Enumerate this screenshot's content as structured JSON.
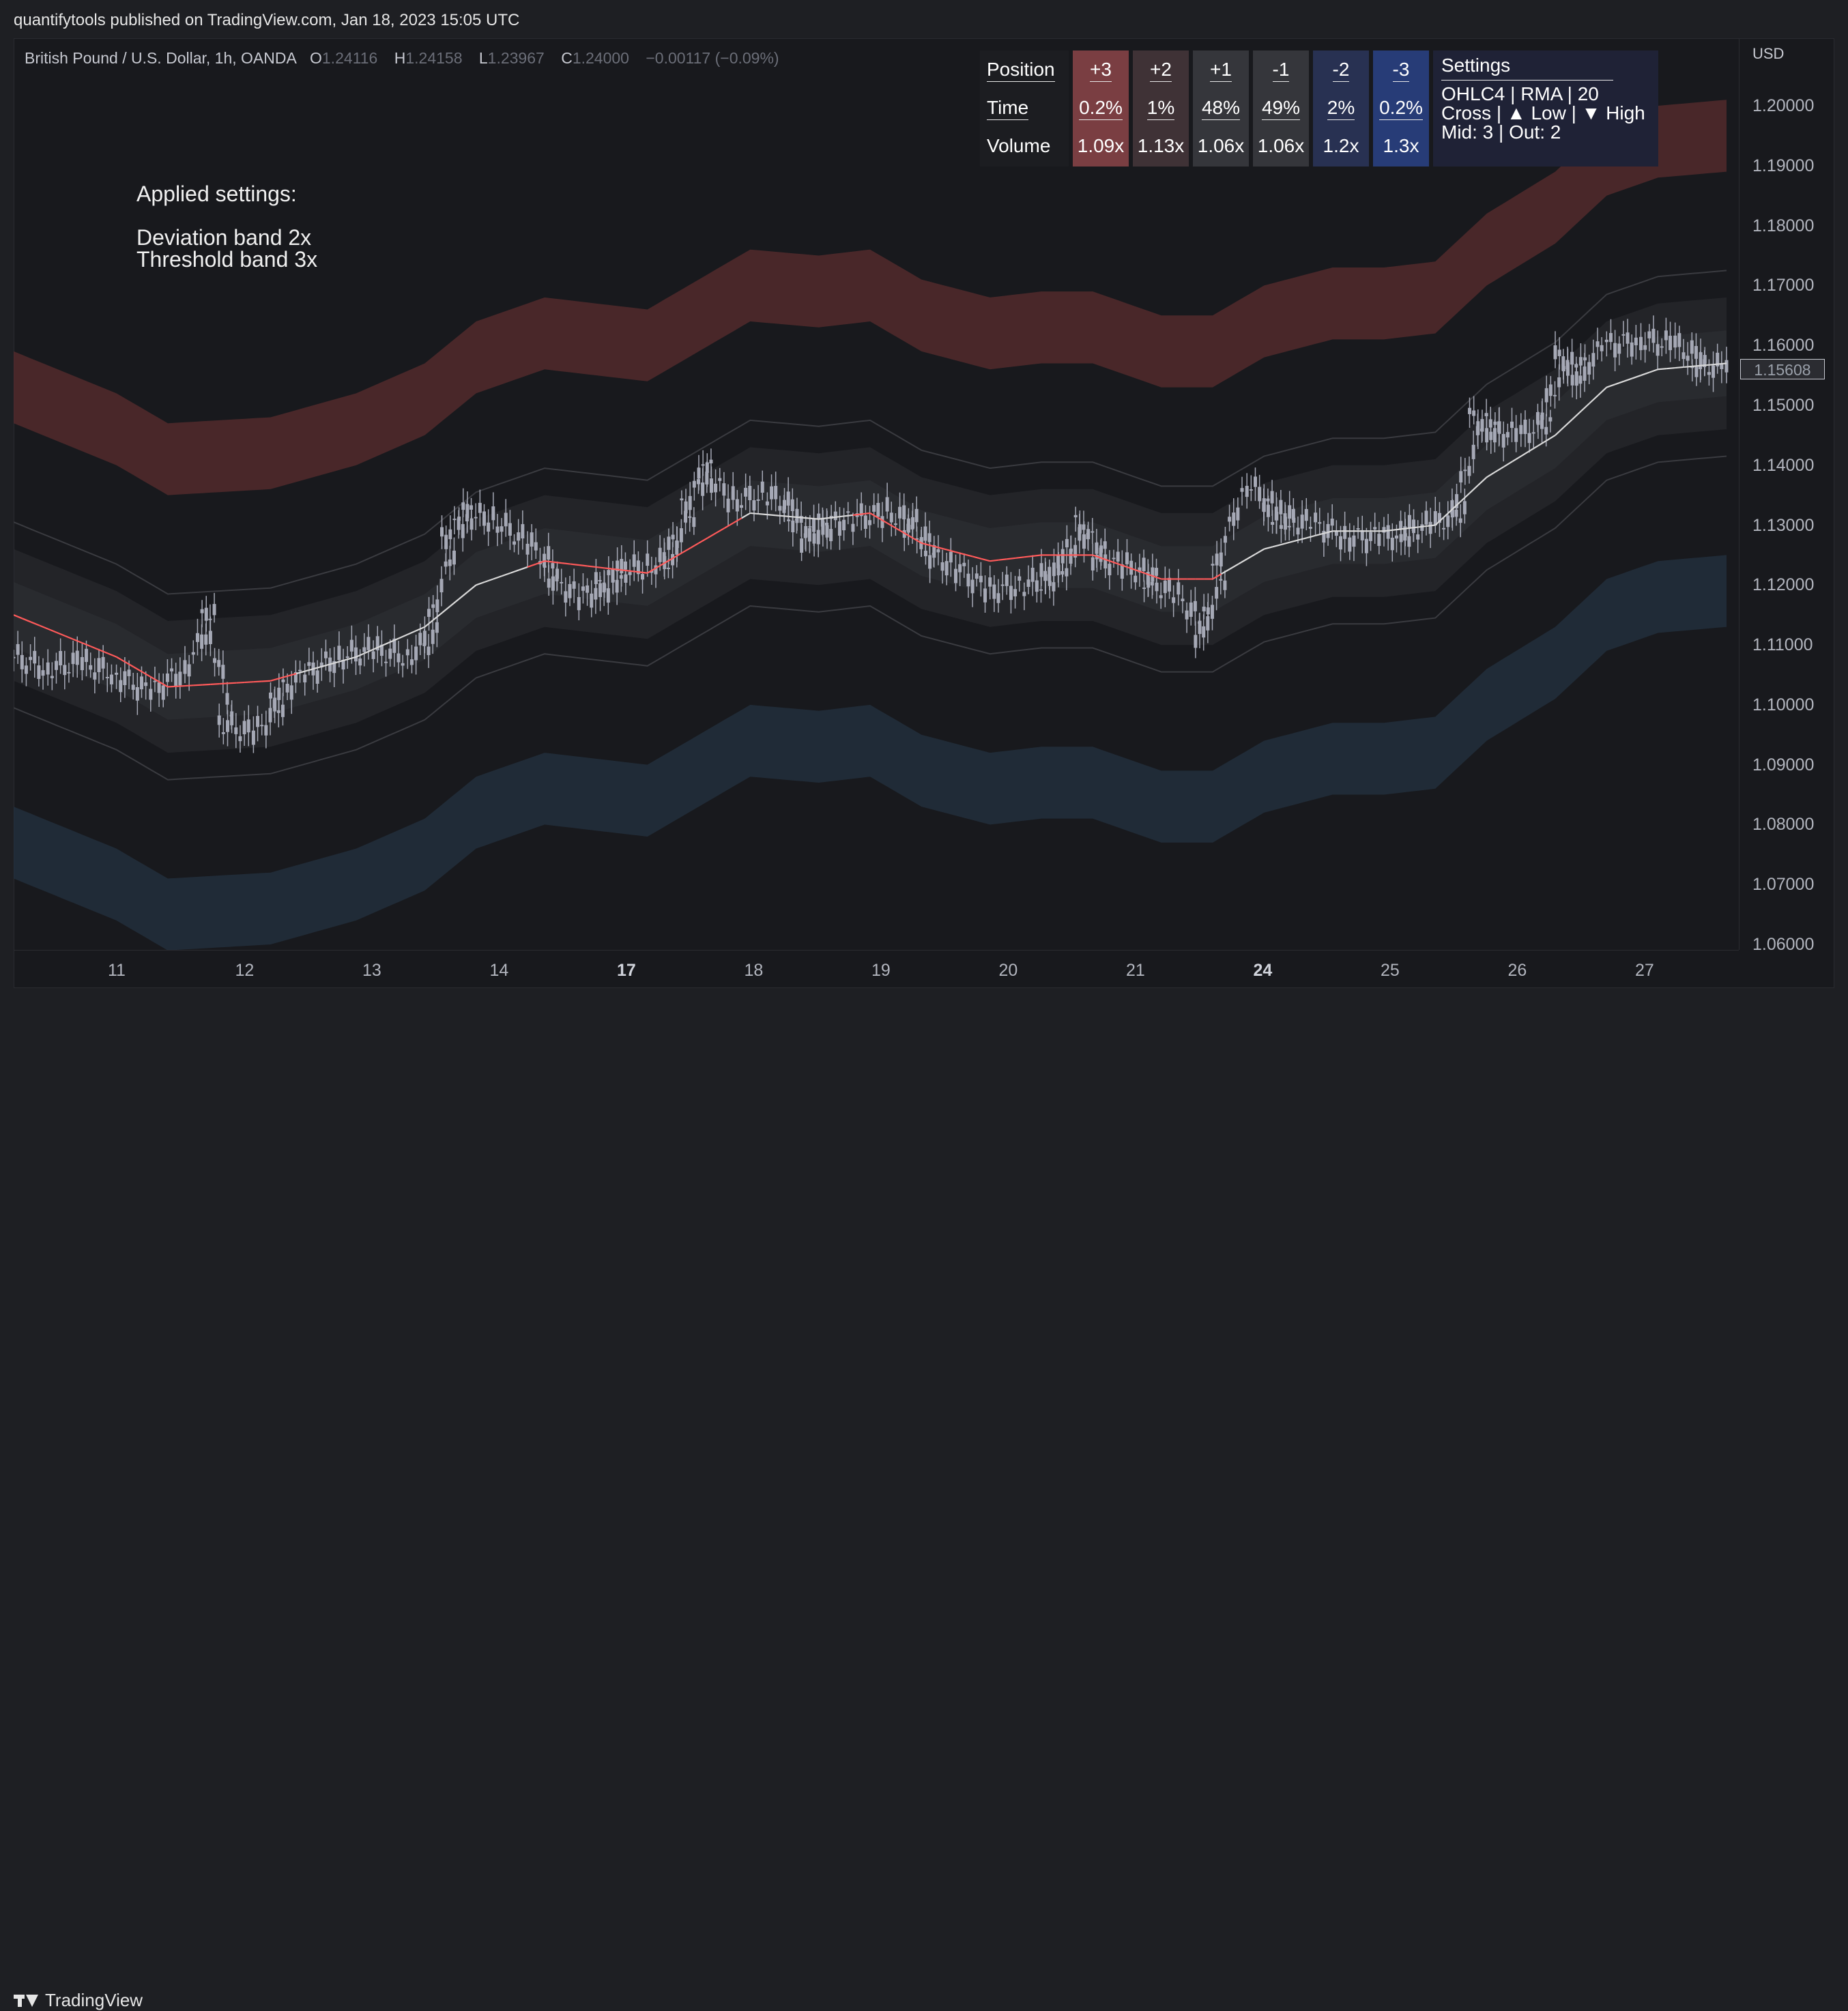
{
  "header": {
    "publisher": "quantifytools published on TradingView.com, Jan 18, 2023 15:05 UTC"
  },
  "legend": {
    "symbol": "British Pound / U.S. Dollar, 1h, OANDA",
    "o_label": "O",
    "o_value": "1.24116",
    "h_label": "H",
    "h_value": "1.24158",
    "l_label": "L",
    "l_value": "1.23967",
    "c_label": "C",
    "c_value": "1.24000",
    "change": "−0.00117 (−0.09%)"
  },
  "annotation": {
    "line1": "Applied settings:",
    "line2": "Deviation band 2x",
    "line3": "Threshold band 3x"
  },
  "stats_table": {
    "row_labels": [
      "Position",
      "Time",
      "Volume"
    ],
    "columns": [
      {
        "position": "+3",
        "time": "0.2%",
        "volume": "1.09x",
        "color": "#7a3e42"
      },
      {
        "position": "+2",
        "time": "1%",
        "volume": "1.13x",
        "color": "#3f3236"
      },
      {
        "position": "+1",
        "time": "48%",
        "volume": "1.06x",
        "color": "#35363b"
      },
      {
        "position": "-1",
        "time": "49%",
        "volume": "1.06x",
        "color": "#35363b"
      },
      {
        "position": "-2",
        "time": "2%",
        "volume": "1.2x",
        "color": "#283152"
      },
      {
        "position": "-3",
        "time": "0.2%",
        "volume": "1.3x",
        "color": "#273c77"
      }
    ],
    "settings": {
      "title": "Settings",
      "line1": "OHLC4 | RMA | 20",
      "line2": "Cross | ▲ Low | ▼ High",
      "line3": "Mid: 3 | Out: 2"
    }
  },
  "price_axis": {
    "currency": "USD",
    "ticks": [
      "1.20000",
      "1.19000",
      "1.18000",
      "1.17000",
      "1.16000",
      "1.15000",
      "1.14000",
      "1.13000",
      "1.12000",
      "1.11000",
      "1.10000",
      "1.09000",
      "1.08000",
      "1.07000",
      "1.06000"
    ],
    "last_price": "1.15608"
  },
  "time_axis": {
    "ticks": [
      {
        "label": "11",
        "bold": false
      },
      {
        "label": "12",
        "bold": false
      },
      {
        "label": "13",
        "bold": false
      },
      {
        "label": "14",
        "bold": false
      },
      {
        "label": "17",
        "bold": true
      },
      {
        "label": "18",
        "bold": false
      },
      {
        "label": "19",
        "bold": false
      },
      {
        "label": "20",
        "bold": false
      },
      {
        "label": "21",
        "bold": false
      },
      {
        "label": "24",
        "bold": true
      },
      {
        "label": "25",
        "bold": false
      },
      {
        "label": "26",
        "bold": false
      },
      {
        "label": "27",
        "bold": false
      }
    ]
  },
  "chart_data": {
    "type": "candlestick",
    "y_range": [
      1.055,
      1.2065
    ],
    "colors": {
      "upper_threshold": "#5a2c2e",
      "lower_threshold": "#233140",
      "midline_above": "#ff5a5a",
      "midline_below": "#d9d9d9",
      "candle": "#a6a9b6"
    },
    "x_day_labels": [
      "11",
      "12",
      "13",
      "14",
      "17",
      "18",
      "19",
      "20",
      "21",
      "24",
      "25",
      "26",
      "27"
    ],
    "mid_line": [
      [
        0,
        1.115
      ],
      [
        0.06,
        1.108
      ],
      [
        0.09,
        1.103
      ],
      [
        0.15,
        1.104
      ],
      [
        0.2,
        1.108
      ],
      [
        0.24,
        1.113
      ],
      [
        0.27,
        1.12
      ],
      [
        0.31,
        1.124
      ],
      [
        0.34,
        1.123
      ],
      [
        0.37,
        1.122
      ],
      [
        0.4,
        1.127
      ],
      [
        0.43,
        1.132
      ],
      [
        0.47,
        1.131
      ],
      [
        0.5,
        1.132
      ],
      [
        0.53,
        1.127
      ],
      [
        0.57,
        1.124
      ],
      [
        0.6,
        1.125
      ],
      [
        0.63,
        1.125
      ],
      [
        0.67,
        1.121
      ],
      [
        0.7,
        1.121
      ],
      [
        0.73,
        1.126
      ],
      [
        0.77,
        1.129
      ],
      [
        0.8,
        1.129
      ],
      [
        0.83,
        1.13
      ],
      [
        0.86,
        1.138
      ],
      [
        0.9,
        1.145
      ],
      [
        0.93,
        1.153
      ],
      [
        0.96,
        1.156
      ],
      [
        1.0,
        1.157
      ]
    ],
    "mid_line_cross_above": [
      [
        0.0,
        0.16
      ],
      [
        0.3,
        0.42
      ],
      [
        0.49,
        0.7
      ]
    ],
    "band_width": {
      "inner": 0.0055,
      "dev2": 0.011,
      "thr_in": 0.032,
      "thr_out": 0.044
    },
    "candles_approx": [
      [
        0,
        1.108
      ],
      [
        0.02,
        1.106
      ],
      [
        0.04,
        1.107
      ],
      [
        0.06,
        1.105
      ],
      [
        0.08,
        1.102
      ],
      [
        0.1,
        1.106
      ],
      [
        0.11,
        1.116
      ],
      [
        0.12,
        1.097
      ],
      [
        0.14,
        1.095
      ],
      [
        0.15,
        1.101
      ],
      [
        0.17,
        1.105
      ],
      [
        0.19,
        1.108
      ],
      [
        0.21,
        1.109
      ],
      [
        0.23,
        1.108
      ],
      [
        0.24,
        1.112
      ],
      [
        0.25,
        1.128
      ],
      [
        0.26,
        1.132
      ],
      [
        0.28,
        1.131
      ],
      [
        0.3,
        1.127
      ],
      [
        0.31,
        1.122
      ],
      [
        0.33,
        1.118
      ],
      [
        0.34,
        1.12
      ],
      [
        0.35,
        1.122
      ],
      [
        0.37,
        1.123
      ],
      [
        0.38,
        1.125
      ],
      [
        0.39,
        1.133
      ],
      [
        0.4,
        1.14
      ],
      [
        0.42,
        1.134
      ],
      [
        0.44,
        1.135
      ],
      [
        0.45,
        1.132
      ],
      [
        0.46,
        1.128
      ],
      [
        0.47,
        1.13
      ],
      [
        0.49,
        1.131
      ],
      [
        0.51,
        1.132
      ],
      [
        0.52,
        1.13
      ],
      [
        0.53,
        1.126
      ],
      [
        0.55,
        1.123
      ],
      [
        0.57,
        1.119
      ],
      [
        0.59,
        1.12
      ],
      [
        0.6,
        1.121
      ],
      [
        0.61,
        1.124
      ],
      [
        0.62,
        1.13
      ],
      [
        0.63,
        1.125
      ],
      [
        0.65,
        1.123
      ],
      [
        0.66,
        1.121
      ],
      [
        0.68,
        1.118
      ],
      [
        0.69,
        1.112
      ],
      [
        0.7,
        1.122
      ],
      [
        0.72,
        1.137
      ],
      [
        0.73,
        1.132
      ],
      [
        0.74,
        1.131
      ],
      [
        0.76,
        1.13
      ],
      [
        0.78,
        1.128
      ],
      [
        0.8,
        1.128
      ],
      [
        0.81,
        1.129
      ],
      [
        0.83,
        1.13
      ],
      [
        0.84,
        1.133
      ],
      [
        0.85,
        1.148
      ],
      [
        0.86,
        1.146
      ],
      [
        0.88,
        1.145
      ],
      [
        0.89,
        1.148
      ],
      [
        0.9,
        1.158
      ],
      [
        0.91,
        1.155
      ],
      [
        0.93,
        1.16
      ],
      [
        0.95,
        1.161
      ],
      [
        0.97,
        1.16
      ],
      [
        0.98,
        1.157
      ],
      [
        1.0,
        1.156
      ]
    ]
  }
}
